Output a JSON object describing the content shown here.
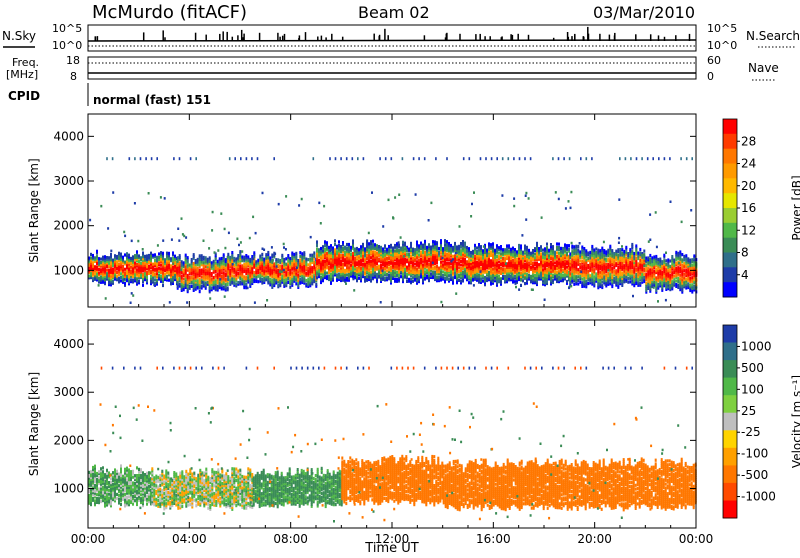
{
  "header": {
    "station": "McMurdo (fitACF)",
    "beam": "Beam 02",
    "date": "03/Mar/2010"
  },
  "status_panel": {
    "nsky_label": "N.Sky",
    "nsky_ticks": [
      "10^5",
      "10^0"
    ],
    "nsearch_label": "N.Search",
    "nsearch_ticks": [
      "10^5",
      "10^0"
    ],
    "freq_label_line1": "Freq.",
    "freq_label_line2": "[MHz]",
    "freq_ticks": [
      "18",
      "8"
    ],
    "nave_label": "Nave",
    "nave_ticks": [
      "60",
      "0"
    ],
    "cpid_label": "CPID",
    "cpid_value": "normal (fast) 151"
  },
  "chart_data": [
    {
      "type": "heatmap",
      "name": "power-panel",
      "ylabel": "Slant Range [km]",
      "ylim": [
        180,
        4500
      ],
      "yticks": [
        1000,
        2000,
        3000,
        4000
      ],
      "xticks": [
        "00:00",
        "04:00",
        "08:00",
        "12:00",
        "16:00",
        "20:00",
        "00:00"
      ],
      "colorbar": {
        "label": "Power [dB]",
        "tick_labels": [
          "28",
          "24",
          "20",
          "16",
          "12",
          "8",
          "4"
        ],
        "colors": [
          "#ff0000",
          "#ff3b00",
          "#ff7700",
          "#ff9a00",
          "#ffb900",
          "#e6e600",
          "#9acd32",
          "#50b848",
          "#3a8c56",
          "#2f6f8a",
          "#1e3ca8",
          "#0000ff"
        ]
      },
      "bands": [
        {
          "start": 0.0,
          "end": 3.5,
          "low": 700,
          "high": 1300
        },
        {
          "start": 3.5,
          "end": 5.5,
          "low": 550,
          "high": 1250
        },
        {
          "start": 5.5,
          "end": 9.0,
          "low": 650,
          "high": 1300
        },
        {
          "start": 9.0,
          "end": 15.0,
          "low": 750,
          "high": 1550
        },
        {
          "start": 15.0,
          "end": 19.0,
          "low": 700,
          "high": 1500
        },
        {
          "start": 19.0,
          "end": 22.0,
          "low": 650,
          "high": 1450
        },
        {
          "start": 22.0,
          "end": 24.0,
          "low": 550,
          "high": 1300
        }
      ],
      "range_line_km": 3500
    },
    {
      "type": "heatmap",
      "name": "velocity-panel",
      "ylabel": "Slant Range [km]",
      "ylim": [
        180,
        4500
      ],
      "yticks": [
        1000,
        2000,
        3000,
        4000
      ],
      "xticks": [
        "00:00",
        "04:00",
        "08:00",
        "12:00",
        "16:00",
        "20:00",
        "00:00"
      ],
      "xlabel": "Time UT",
      "colorbar": {
        "label": "Velocity [m s⁻¹]",
        "tick_labels": [
          "1000",
          "500",
          "100",
          "25",
          "-25",
          "-100",
          "-500",
          "-1000"
        ],
        "colors": [
          "#1e3ca8",
          "#2f6f8a",
          "#3a8c56",
          "#50b848",
          "#7fd040",
          "#bfbfbf",
          "#ffd400",
          "#ffa000",
          "#ff7700",
          "#ff4a00",
          "#ff0000"
        ]
      },
      "bands": [
        {
          "start": 0.0,
          "end": 2.5,
          "low": 650,
          "high": 1350,
          "velocity": 80
        },
        {
          "start": 2.5,
          "end": 6.5,
          "low": 600,
          "high": 1300,
          "velocity": 20
        },
        {
          "start": 6.5,
          "end": 10.0,
          "low": 650,
          "high": 1300,
          "velocity": 150
        },
        {
          "start": 10.0,
          "end": 14.0,
          "low": 700,
          "high": 1550,
          "velocity": -250
        },
        {
          "start": 14.0,
          "end": 24.0,
          "low": 600,
          "high": 1500,
          "velocity": -300
        }
      ],
      "range_line_km": 3500
    }
  ]
}
